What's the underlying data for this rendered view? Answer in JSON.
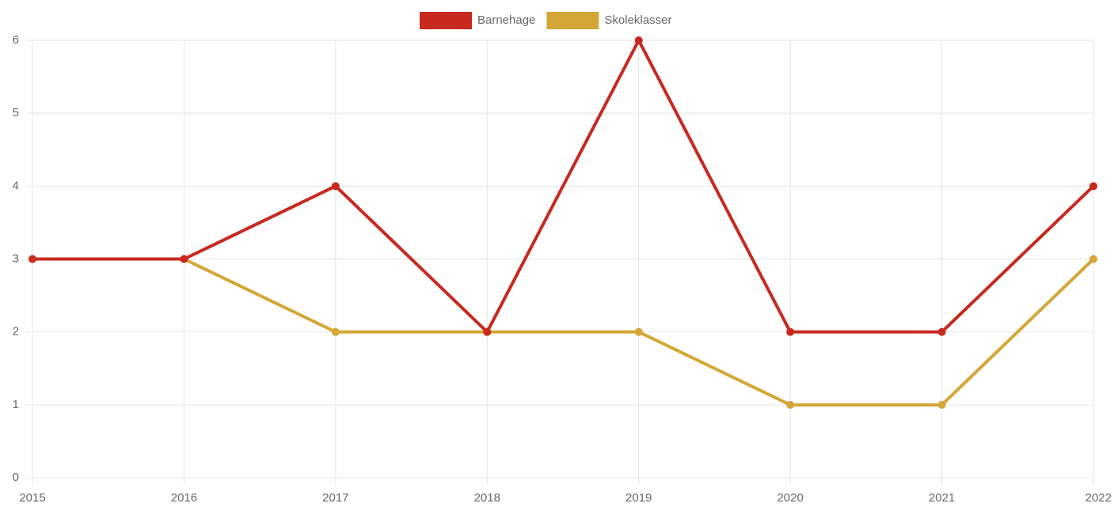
{
  "chart_data": {
    "type": "line",
    "categories": [
      "2015",
      "2016",
      "2017",
      "2018",
      "2019",
      "2020",
      "2021",
      "2022"
    ],
    "series": [
      {
        "name": "Barnehage",
        "color": "#c8291f",
        "values": [
          3,
          3,
          4,
          2,
          6,
          2,
          2,
          4
        ]
      },
      {
        "name": "Skoleklasser",
        "color": "#d4a637",
        "values": [
          3,
          3,
          2,
          2,
          2,
          1,
          1,
          3
        ]
      }
    ],
    "ylim": [
      0,
      6
    ],
    "yticks": [
      0,
      1,
      2,
      3,
      4,
      5,
      6
    ],
    "grid": true,
    "legend": "top"
  }
}
